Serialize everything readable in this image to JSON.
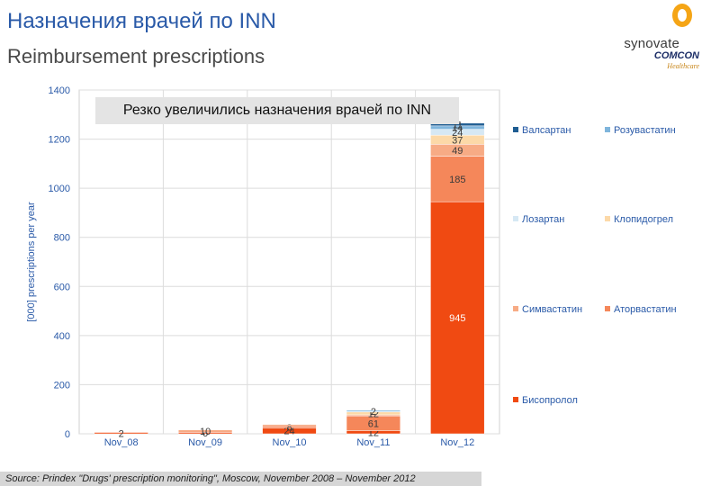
{
  "title": "Назначения врачей по INN",
  "subtitle": "Reimbursement prescriptions",
  "logo": {
    "line1": "synovate",
    "line2": "COMCON",
    "line3": "Healthcare"
  },
  "annotation": "Резко увеличились назначения врачей по INN",
  "source": "Source: Prindex \"Drugs' prescription monitoring\", Moscow, November 2008 – November 2012",
  "chart_data": {
    "type": "bar",
    "stacked": true,
    "ylabel": "[000] prescriptions per year",
    "ylim": [
      0,
      1400
    ],
    "yticks": [
      0,
      200,
      400,
      600,
      800,
      1000,
      1200,
      1400
    ],
    "grid": true,
    "legend_position": "right",
    "categories": [
      "Nov_08",
      "Nov_09",
      "Nov_10",
      "Nov_11",
      "Nov_12"
    ],
    "series": [
      {
        "name": "Бисопролол",
        "color": "#f04a12",
        "values": [
          2,
          6,
          24,
          12,
          945
        ],
        "labels": [
          "2",
          "6",
          "24",
          "12",
          "945"
        ]
      },
      {
        "name": "Аторвастатин",
        "color": "#f5875a",
        "values": [
          0,
          0,
          8,
          61,
          185
        ],
        "labels": [
          "",
          "",
          "8",
          "61",
          "185"
        ]
      },
      {
        "name": "Симвастатин",
        "color": "#f7ab85",
        "values": [
          0,
          10,
          6,
          4,
          49
        ],
        "labels": [
          "",
          "10",
          "",
          "",
          "49"
        ]
      },
      {
        "name": "Клопидогрел",
        "color": "#fcd9a8",
        "values": [
          0,
          0,
          0,
          12,
          37
        ],
        "labels": [
          "",
          "",
          "",
          "12",
          "37"
        ]
      },
      {
        "name": "Лозартан",
        "color": "#d6e8f4",
        "values": [
          0,
          0,
          0,
          1,
          24
        ],
        "labels": [
          "",
          "",
          "",
          "",
          "24"
        ]
      },
      {
        "name": "Розувастатин",
        "color": "#7fb5dc",
        "values": [
          0,
          0,
          0,
          2,
          14
        ],
        "labels": [
          "",
          "",
          "",
          "2",
          "14"
        ]
      },
      {
        "name": "Валсартан",
        "color": "#1f5d92",
        "values": [
          0,
          0,
          0,
          0,
          11
        ],
        "labels": [
          "",
          "",
          "",
          "",
          "11"
        ]
      }
    ],
    "legend_order": [
      [
        "Валсартан",
        "Розувастатин"
      ],
      [
        "Лозартан",
        "Клопидогрел"
      ],
      [
        "Симвастатин",
        "Аторвастатин"
      ],
      [
        "Бисопролол",
        ""
      ]
    ]
  }
}
